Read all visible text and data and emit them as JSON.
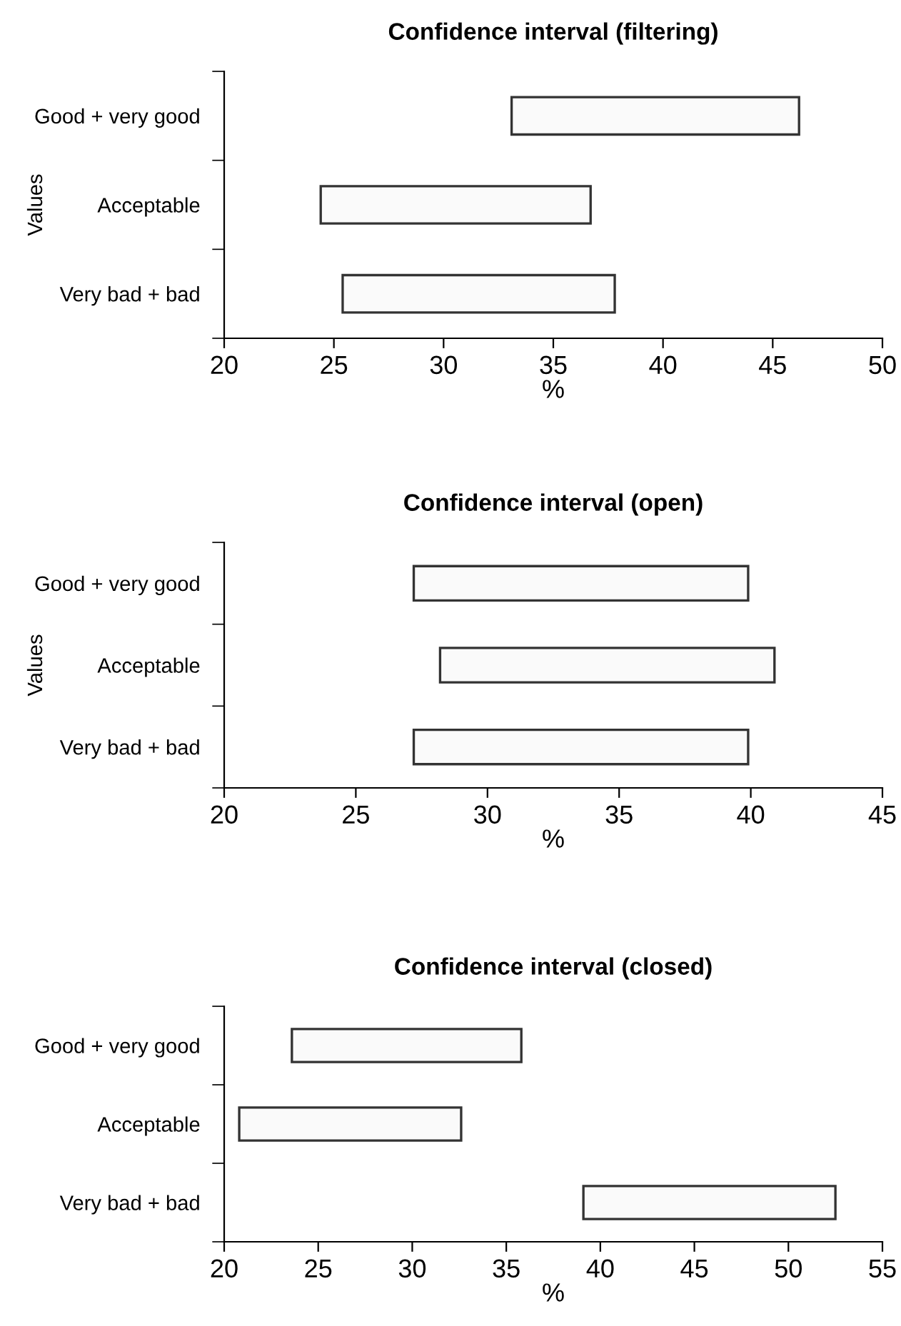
{
  "chart_data": [
    {
      "type": "bar",
      "orientation": "horizontal",
      "title": "Confidence interval (filtering)",
      "xlabel": "%",
      "ylabel": "Values",
      "categories": [
        "Good + very good",
        "Acceptable",
        "Very bad + bad"
      ],
      "base": [
        33.1,
        24.4,
        25.4
      ],
      "values": [
        13.1,
        12.3,
        12.4
      ],
      "color": "#fafafa",
      "xlim": [
        20,
        50
      ],
      "xticks": [
        20,
        25,
        30,
        35,
        40,
        45,
        50
      ],
      "grid": false,
      "legend": false
    },
    {
      "type": "bar",
      "orientation": "horizontal",
      "title": "Confidence interval (open)",
      "xlabel": "%",
      "ylabel": "Values",
      "categories": [
        "Good + very good",
        "Acceptable",
        "Very bad + bad"
      ],
      "base": [
        27.2,
        28.2,
        27.2
      ],
      "values": [
        12.7,
        12.7,
        12.7
      ],
      "color": "#fafafa",
      "xlim": [
        20,
        45
      ],
      "xticks": [
        20,
        25,
        30,
        35,
        40,
        45
      ],
      "grid": false,
      "legend": false
    },
    {
      "type": "bar",
      "orientation": "horizontal",
      "title": "Confidence interval (closed)",
      "xlabel": "%",
      "categories": [
        "Good + very good",
        "Acceptable",
        "Very bad + bad"
      ],
      "base": [
        23.6,
        20.8,
        39.1
      ],
      "values": [
        12.2,
        11.8,
        13.4
      ],
      "color": "#fafafa",
      "xlim": [
        20,
        55
      ],
      "xticks": [
        20,
        25,
        30,
        35,
        40,
        45,
        50,
        55
      ],
      "grid": false,
      "legend": false
    }
  ]
}
